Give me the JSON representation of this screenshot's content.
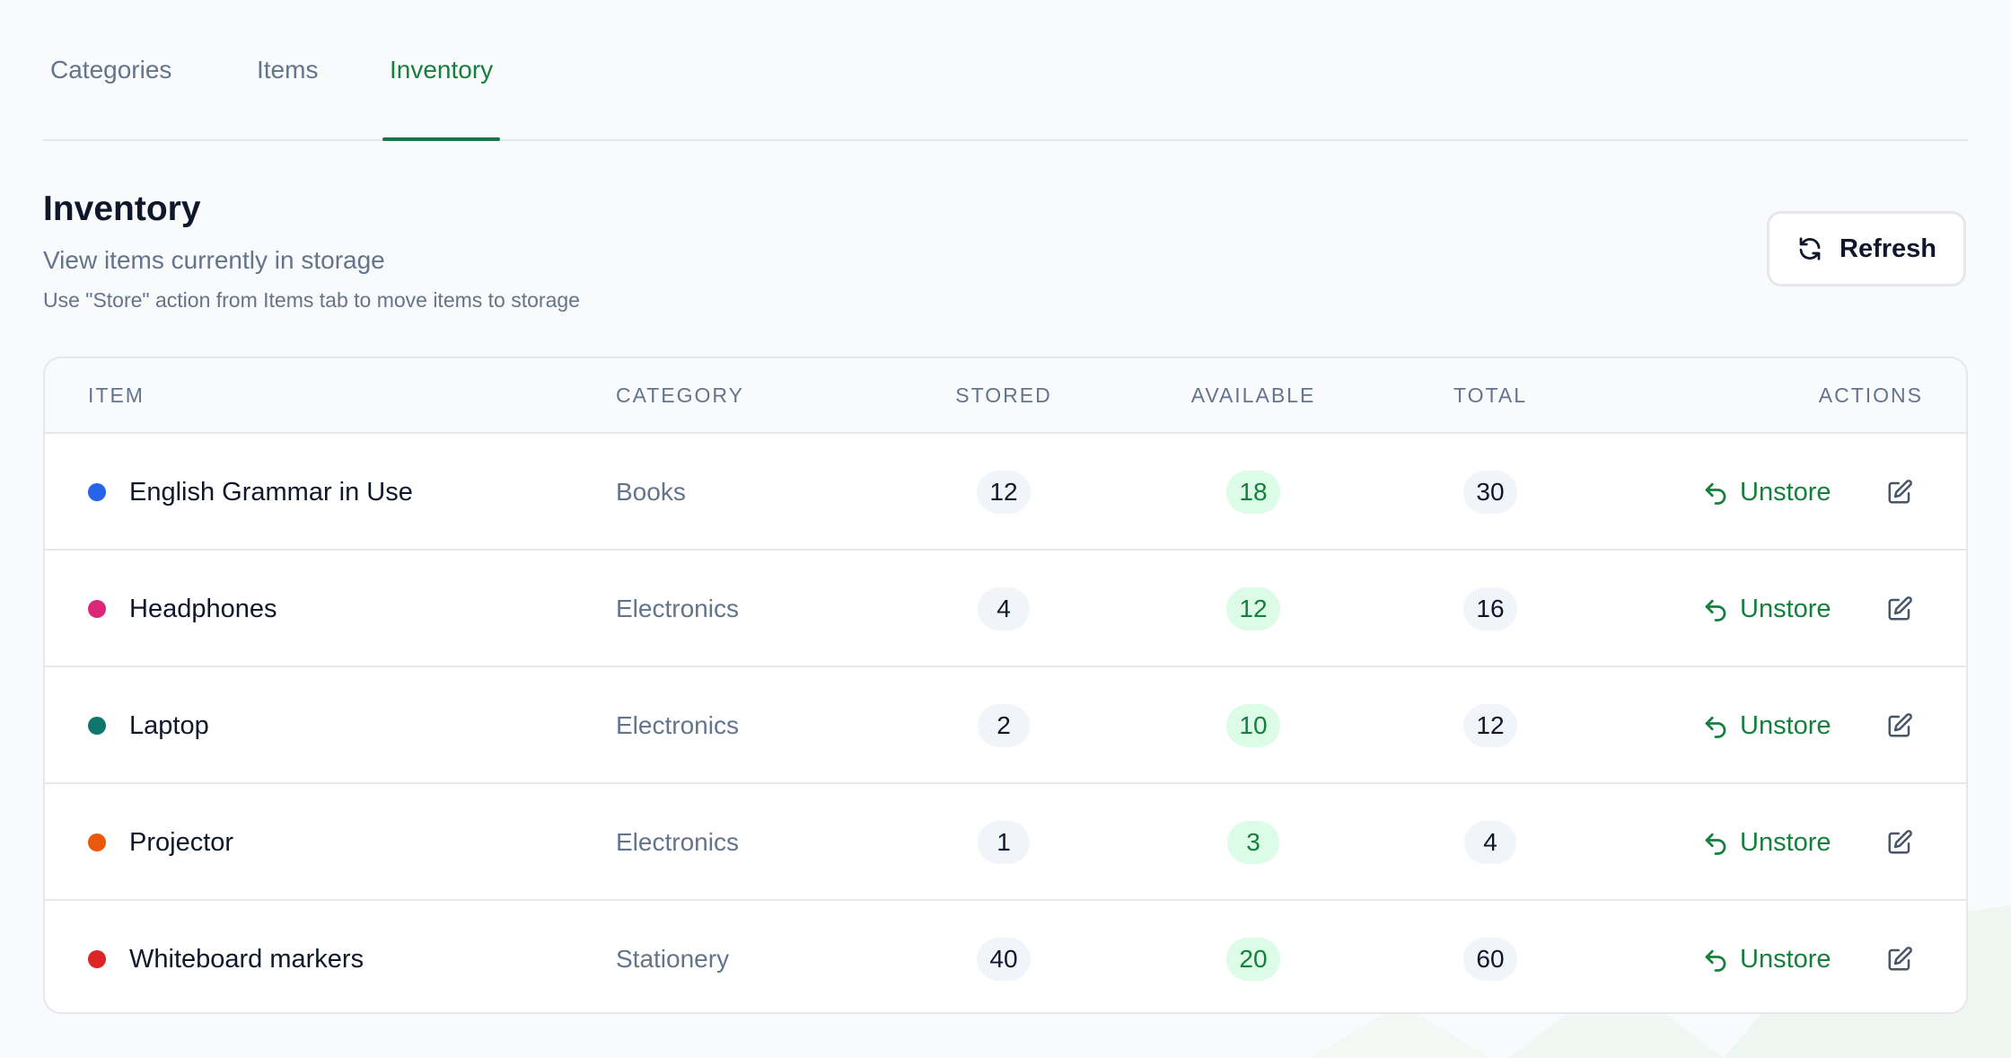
{
  "tabs": [
    {
      "label": "Categories",
      "active": false
    },
    {
      "label": "Items",
      "active": false
    },
    {
      "label": "Inventory",
      "active": true
    }
  ],
  "header": {
    "title": "Inventory",
    "subtitle": "View items currently in storage",
    "hint": "Use \"Store\" action from Items tab to move items to storage",
    "refresh_label": "Refresh"
  },
  "table": {
    "columns": {
      "item": "ITEM",
      "category": "CATEGORY",
      "stored": "STORED",
      "available": "AVAILABLE",
      "total": "TOTAL",
      "actions": "ACTIONS"
    },
    "unstore_label": "Unstore",
    "rows": [
      {
        "name": "English Grammar in Use",
        "category": "Books",
        "stored": "12",
        "available": "18",
        "total": "30",
        "dot_color": "#2563eb"
      },
      {
        "name": "Headphones",
        "category": "Electronics",
        "stored": "4",
        "available": "12",
        "total": "16",
        "dot_color": "#db2777"
      },
      {
        "name": "Laptop",
        "category": "Electronics",
        "stored": "2",
        "available": "10",
        "total": "12",
        "dot_color": "#0f766e"
      },
      {
        "name": "Projector",
        "category": "Electronics",
        "stored": "1",
        "available": "3",
        "total": "4",
        "dot_color": "#ea580c"
      },
      {
        "name": "Whiteboard markers",
        "category": "Stationery",
        "stored": "40",
        "available": "20",
        "total": "60",
        "dot_color": "#dc2626"
      }
    ]
  },
  "icons": {
    "refresh": "refresh-icon",
    "unstore": "undo-arrow-icon",
    "edit": "edit-icon"
  },
  "colors": {
    "accent": "#15803d",
    "available_badge_bg": "#dcfce7"
  }
}
